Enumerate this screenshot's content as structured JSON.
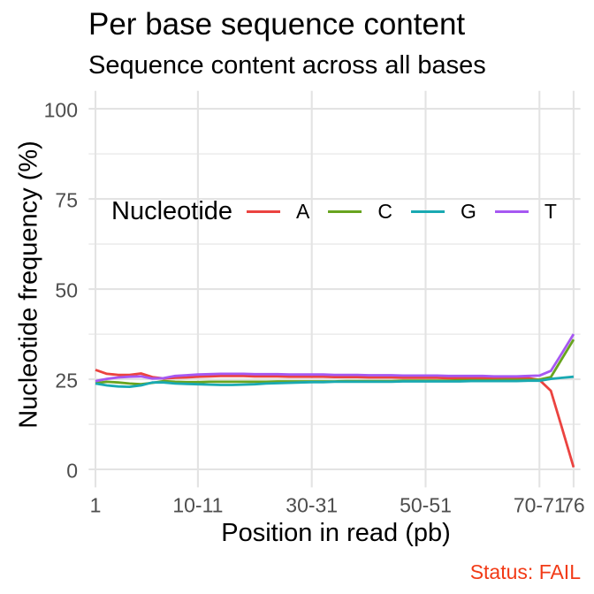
{
  "chart_data": {
    "type": "line",
    "title": "Per base sequence content",
    "subtitle": "Sequence content across all bases",
    "caption": "Status: FAIL",
    "caption_color": "#F23A16",
    "xlabel": "Position in read (pb)",
    "ylabel": "Nucleotide frequency (%)",
    "legend_title": "Nucleotide",
    "legend_position": "inside-top-center",
    "grid": true,
    "background": "#FFFFFF",
    "grid_major_color": "#E3E3E3",
    "grid_minor_color": "#E9E9E9",
    "axis_text_color": "#4D4D4D",
    "ylim": [
      -5,
      105
    ],
    "y_ticks": [
      0,
      25,
      50,
      75,
      100
    ],
    "y_minor_ticks": [
      12.5,
      37.5,
      62.5,
      87.5
    ],
    "x_break_labels": [
      "1",
      "10-11",
      "30-31",
      "50-51",
      "70-71",
      "76"
    ],
    "categories": [
      "1",
      "2",
      "3",
      "4",
      "5",
      "6",
      "7",
      "8",
      "9",
      "10-11",
      "12-13",
      "14-15",
      "16-17",
      "18-19",
      "20-21",
      "22-23",
      "24-25",
      "26-27",
      "28-29",
      "30-31",
      "32-33",
      "34-35",
      "36-37",
      "38-39",
      "40-41",
      "42-43",
      "44-45",
      "46-47",
      "48-49",
      "50-51",
      "52-53",
      "54-55",
      "56-57",
      "58-59",
      "60-61",
      "62-63",
      "64-65",
      "66-67",
      "68-69",
      "70-71",
      "72-73",
      "74-75",
      "76"
    ],
    "series": [
      {
        "name": "A",
        "color": "#EB4340",
        "values": [
          27.6,
          26.5,
          26.2,
          26.2,
          26.6,
          25.6,
          25.2,
          25.4,
          25.5,
          25.7,
          25.8,
          25.9,
          25.9,
          25.9,
          25.8,
          25.8,
          25.8,
          25.7,
          25.7,
          25.7,
          25.7,
          25.6,
          25.6,
          25.6,
          25.5,
          25.5,
          25.5,
          25.4,
          25.4,
          25.4,
          25.4,
          25.3,
          25.3,
          25.3,
          25.3,
          25.2,
          25.2,
          25.2,
          25.3,
          24.8,
          21.8,
          11.3,
          0.6
        ]
      },
      {
        "name": "C",
        "color": "#68A41F",
        "values": [
          23.9,
          24.3,
          24.1,
          23.8,
          23.6,
          24.0,
          24.5,
          24.3,
          24.2,
          24.2,
          24.3,
          24.3,
          24.3,
          24.3,
          24.3,
          24.3,
          24.4,
          24.4,
          24.4,
          24.4,
          24.4,
          24.4,
          24.5,
          24.5,
          24.5,
          24.5,
          24.5,
          24.6,
          24.6,
          24.6,
          24.6,
          24.6,
          24.7,
          24.7,
          24.7,
          24.7,
          24.8,
          24.8,
          24.8,
          24.9,
          25.6,
          30.8,
          36.0
        ]
      },
      {
        "name": "G",
        "color": "#19A9B2",
        "values": [
          23.8,
          23.3,
          23.0,
          22.9,
          23.3,
          24.1,
          24.1,
          23.8,
          23.7,
          23.6,
          23.5,
          23.4,
          23.4,
          23.5,
          23.6,
          23.8,
          23.9,
          24.0,
          24.1,
          24.2,
          24.2,
          24.3,
          24.3,
          24.3,
          24.3,
          24.3,
          24.3,
          24.4,
          24.4,
          24.4,
          24.4,
          24.4,
          24.4,
          24.5,
          24.5,
          24.5,
          24.5,
          24.5,
          24.6,
          24.6,
          25.1,
          25.4,
          25.7
        ]
      },
      {
        "name": "T",
        "color": "#A658F2",
        "values": [
          24.5,
          25.1,
          25.5,
          25.7,
          25.8,
          25.2,
          25.3,
          25.9,
          26.1,
          26.3,
          26.4,
          26.5,
          26.5,
          26.5,
          26.4,
          26.4,
          26.4,
          26.3,
          26.3,
          26.3,
          26.3,
          26.2,
          26.2,
          26.2,
          26.1,
          26.1,
          26.1,
          26.0,
          26.0,
          26.0,
          26.0,
          25.9,
          25.9,
          25.9,
          25.9,
          25.8,
          25.8,
          25.8,
          25.9,
          26.0,
          27.3,
          32.3,
          37.5
        ]
      }
    ]
  }
}
